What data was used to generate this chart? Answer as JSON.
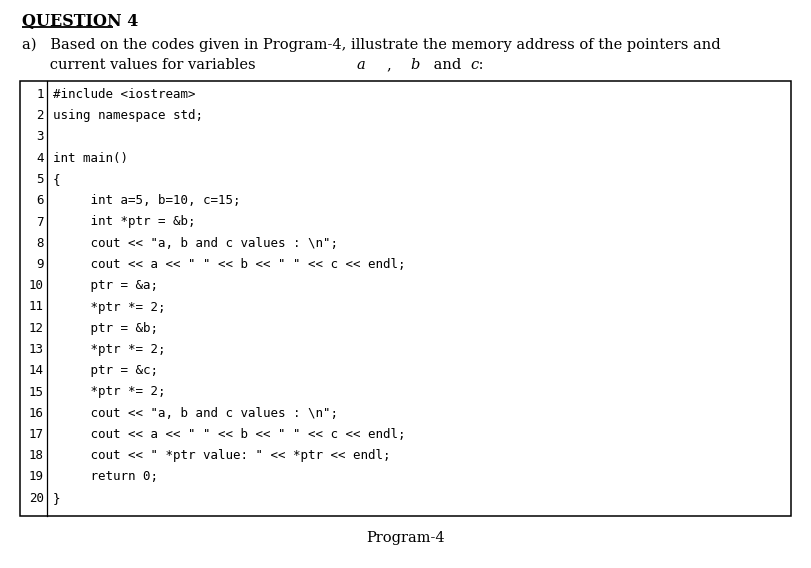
{
  "title": "QUESTION 4",
  "line_a": "a)   Based on the codes given in Program-4, illustrate the memory address of the pointers and",
  "line_b_pre": "      current values for variables ",
  "line_b_a": "a",
  "line_b_comma": ", ",
  "line_b_b": "b",
  "line_b_and": " and ",
  "line_b_c": "c",
  "line_b_post": " :",
  "program_label": "Program-4",
  "bg_color": "#ffffff",
  "box_bg": "#ffffff",
  "box_edge": "#000000",
  "code_font_size": 9.0,
  "title_font_size": 11.5,
  "body_font_size": 10.5,
  "code_lines_num": [
    "1",
    "2",
    "3",
    "4",
    "5",
    "6",
    "7",
    "8",
    "9",
    "10",
    "11",
    "12",
    "13",
    "14",
    "15",
    "16",
    "17",
    "18",
    "19",
    "20"
  ],
  "code_lines_text": [
    "#include <iostream>",
    "using namespace std;",
    "",
    "int main()",
    "{",
    "     int a=5, b=10, c=15;",
    "     int *ptr = &b;",
    "     cout << \"a, b and c values : \\n\";",
    "     cout << a << \" \" << b << \" \" << c << endl;",
    "     ptr = &a;",
    "     *ptr *= 2;",
    "     ptr = &b;",
    "     *ptr *= 2;",
    "     ptr = &c;",
    "     *ptr *= 2;",
    "     cout << \"a, b and c values : \\n\";",
    "     cout << a << \" \" << b << \" \" << c << endl;",
    "     cout << \" *ptr value: \" << *ptr << endl;",
    "     return 0;",
    "}"
  ]
}
